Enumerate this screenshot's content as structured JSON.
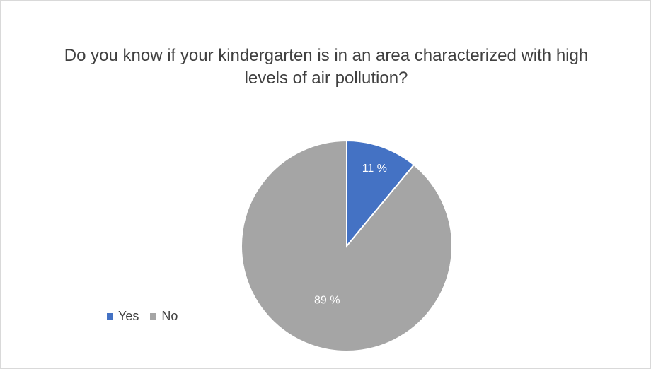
{
  "chart_data": {
    "type": "pie",
    "title": "Do you know if your kindergarten is in an area characterized with high levels of air pollution?",
    "categories": [
      "Yes",
      "No"
    ],
    "values": [
      11,
      89
    ],
    "labels": [
      "11 %",
      "89 %"
    ],
    "colors": [
      "#4472C4",
      "#A5A5A5"
    ],
    "legend_position": "left-bottom"
  }
}
